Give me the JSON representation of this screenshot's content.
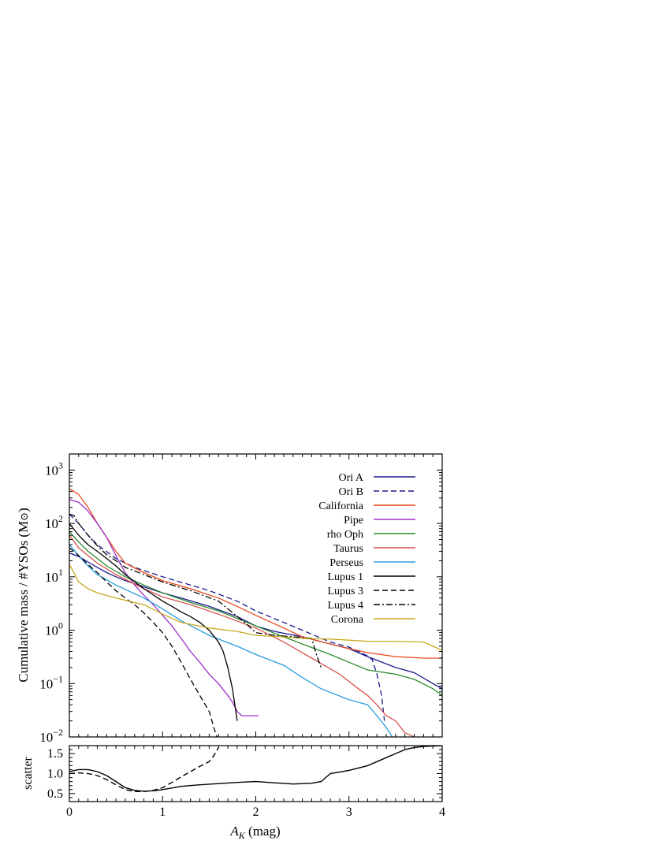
{
  "chart_data": [
    {
      "type": "line",
      "xlabel": "",
      "ylabel": "Cumulative mass / #YSOs (M",
      "ylabel_symbol": "⊙",
      "ylabel_close": ")",
      "xlim": [
        0,
        4
      ],
      "ylim": [
        0.01,
        2000
      ],
      "yscale": "log",
      "grid": false,
      "legend_position": "top-right",
      "y_ticks": [
        {
          "value": 1000,
          "label": "10",
          "exp": "3"
        },
        {
          "value": 100,
          "label": "10",
          "exp": "2"
        },
        {
          "value": 10,
          "label": "10",
          "exp": "1"
        },
        {
          "value": 1,
          "label": "10",
          "exp": "0"
        },
        {
          "value": 0.1,
          "label": "10",
          "exp": "−1"
        },
        {
          "value": 0.01,
          "label": "10",
          "exp": "−2"
        }
      ],
      "series": [
        {
          "name": "Ori A",
          "color": "#1a1a8c",
          "dash": "solid",
          "x": [
            0,
            0.1,
            0.2,
            0.3,
            0.4,
            0.5,
            0.6,
            0.8,
            1.0,
            1.2,
            1.5,
            1.8,
            2.0,
            2.2,
            2.5,
            2.8,
            3.0,
            3.2,
            3.5,
            3.7,
            3.9,
            4.0
          ],
          "y": [
            28,
            24,
            19,
            15,
            12,
            10,
            8.5,
            6.5,
            5,
            4,
            2.8,
            1.8,
            1.2,
            0.95,
            0.75,
            0.55,
            0.45,
            0.32,
            0.2,
            0.16,
            0.1,
            0.08
          ]
        },
        {
          "name": "Ori B",
          "color": "#1a1a8c",
          "dash": "dashed",
          "x": [
            0,
            0.1,
            0.2,
            0.3,
            0.5,
            0.7,
            1.0,
            1.3,
            1.5,
            1.8,
            2.0,
            2.3,
            2.5,
            2.8,
            3.0,
            3.1,
            3.2,
            3.25,
            3.3,
            3.35,
            3.38
          ],
          "y": [
            150,
            100,
            60,
            40,
            22,
            15,
            10,
            7,
            5.5,
            3.5,
            2.3,
            1.4,
            1.0,
            0.6,
            0.48,
            0.4,
            0.33,
            0.28,
            0.15,
            0.06,
            0.02
          ]
        },
        {
          "name": "California",
          "color": "#e8491d",
          "dash": "solid",
          "x": [
            0,
            0.1,
            0.2,
            0.3,
            0.4,
            0.5,
            0.6,
            0.8,
            1.0,
            1.3,
            1.6,
            1.8,
            2.0,
            2.3,
            2.5,
            2.8,
            3.0,
            3.2,
            3.5,
            3.8,
            4.0
          ],
          "y": [
            450,
            350,
            200,
            100,
            55,
            30,
            18,
            12,
            8.5,
            6,
            4,
            2.8,
            1.9,
            1.1,
            0.75,
            0.55,
            0.45,
            0.38,
            0.32,
            0.3,
            0.3
          ]
        },
        {
          "name": "Pipe",
          "color": "#9b30c8",
          "dash": "solid",
          "x": [
            0,
            0.1,
            0.2,
            0.3,
            0.4,
            0.5,
            0.6,
            0.7,
            0.8,
            0.9,
            1.0,
            1.1,
            1.2,
            1.3,
            1.4,
            1.5,
            1.6,
            1.7,
            1.75,
            1.8,
            1.85,
            2.03
          ],
          "y": [
            280,
            250,
            170,
            100,
            55,
            25,
            12,
            7,
            4.5,
            3,
            1.9,
            1.2,
            0.7,
            0.4,
            0.25,
            0.15,
            0.1,
            0.06,
            0.045,
            0.03,
            0.025,
            0.025
          ]
        },
        {
          "name": "rho Oph",
          "color": "#2a8c2a",
          "dash": "solid",
          "x": [
            0,
            0.1,
            0.2,
            0.3,
            0.4,
            0.6,
            0.8,
            1.0,
            1.3,
            1.6,
            2.0,
            2.3,
            2.5,
            2.8,
            3.0,
            3.2,
            3.5,
            3.7,
            3.9,
            4.0
          ],
          "y": [
            70,
            45,
            30,
            22,
            16,
            10,
            7,
            5,
            3.3,
            2.3,
            1.2,
            0.75,
            0.55,
            0.35,
            0.25,
            0.18,
            0.15,
            0.12,
            0.08,
            0.06
          ]
        },
        {
          "name": "Taurus",
          "color": "#d9534f",
          "dash": "solid",
          "x": [
            0,
            0.1,
            0.2,
            0.3,
            0.5,
            0.8,
            1.0,
            1.3,
            1.6,
            2.0,
            2.3,
            2.6,
            2.9,
            3.1,
            3.2,
            3.3,
            3.4,
            3.5,
            3.6,
            3.7
          ],
          "y": [
            60,
            35,
            25,
            18,
            11,
            6,
            4.2,
            3,
            2,
            1.1,
            0.6,
            0.3,
            0.15,
            0.08,
            0.06,
            0.04,
            0.025,
            0.02,
            0.012,
            0.01
          ]
        },
        {
          "name": "Perseus",
          "color": "#2a9de0",
          "dash": "solid",
          "x": [
            0,
            0.1,
            0.2,
            0.3,
            0.5,
            0.8,
            1.0,
            1.2,
            1.5,
            1.8,
            2.0,
            2.3,
            2.5,
            2.7,
            3.0,
            3.2,
            3.3,
            3.4,
            3.5
          ],
          "y": [
            40,
            25,
            16,
            11,
            7,
            4,
            2.5,
            1.5,
            0.8,
            0.5,
            0.35,
            0.22,
            0.13,
            0.08,
            0.05,
            0.04,
            0.025,
            0.015,
            0.008
          ]
        },
        {
          "name": "Lupus 1",
          "color": "#000000",
          "dash": "solid",
          "x": [
            0,
            0.1,
            0.2,
            0.3,
            0.4,
            0.5,
            0.6,
            0.8,
            1.0,
            1.1,
            1.2,
            1.3,
            1.4,
            1.5,
            1.6,
            1.65,
            1.7,
            1.75,
            1.8
          ],
          "y": [
            100,
            60,
            40,
            30,
            22,
            16,
            11,
            6,
            3.5,
            2.8,
            2.2,
            1.8,
            1.4,
            1.0,
            0.6,
            0.4,
            0.2,
            0.08,
            0.02
          ]
        },
        {
          "name": "Lupus 3",
          "color": "#000000",
          "dash": "dashed",
          "x": [
            0,
            0.1,
            0.2,
            0.3,
            0.4,
            0.5,
            0.6,
            0.7,
            0.8,
            0.9,
            1.0,
            1.1,
            1.2,
            1.3,
            1.4,
            1.5,
            1.55,
            1.6
          ],
          "y": [
            35,
            25,
            17,
            12,
            8,
            5.5,
            4,
            3,
            2.1,
            1.4,
            0.9,
            0.5,
            0.25,
            0.12,
            0.06,
            0.03,
            0.015,
            0.008
          ]
        },
        {
          "name": "Lupus 4",
          "color": "#000000",
          "dash": "dashdot",
          "x": [
            0,
            0.05,
            0.1,
            0.2,
            0.3,
            0.4,
            0.5,
            0.6,
            0.8,
            1.0,
            1.3,
            1.6,
            1.9,
            2.0,
            2.2,
            2.4,
            2.6,
            2.65,
            2.7
          ],
          "y": [
            150,
            140,
            100,
            60,
            38,
            26,
            20,
            15,
            11,
            8,
            5.5,
            3.5,
            1.3,
            0.9,
            0.8,
            0.75,
            0.7,
            0.35,
            0.2
          ]
        },
        {
          "name": "Corona",
          "color": "#c8a81e",
          "dash": "solid",
          "x": [
            0,
            0.05,
            0.1,
            0.2,
            0.3,
            0.5,
            0.8,
            1.0,
            1.2,
            1.5,
            1.8,
            2.0,
            2.3,
            2.5,
            2.8,
            3.0,
            3.2,
            3.5,
            3.8,
            3.9,
            4.0
          ],
          "y": [
            17,
            12,
            8,
            6,
            5,
            4,
            3,
            2,
            1.4,
            1.1,
            0.95,
            0.8,
            0.75,
            0.7,
            0.68,
            0.65,
            0.62,
            0.62,
            0.6,
            0.5,
            0.42
          ]
        }
      ]
    },
    {
      "type": "line",
      "xlabel": "A",
      "xlabel_sub": "K",
      "xlabel_unit": " (mag)",
      "ylabel": "scatter",
      "xlim": [
        0,
        4
      ],
      "ylim": [
        0.3,
        1.7
      ],
      "grid": false,
      "x_ticks": [
        0,
        1,
        2,
        3,
        4
      ],
      "y_ticks": [
        0.5,
        1.0,
        1.5
      ],
      "y_tick_labels": [
        "0.5",
        "1.0",
        "1.5"
      ],
      "series": [
        {
          "color": "#000000",
          "dash": "solid",
          "x": [
            0,
            0.1,
            0.2,
            0.3,
            0.4,
            0.5,
            0.6,
            0.7,
            0.8,
            0.9,
            1.0,
            1.2,
            1.4,
            1.6,
            1.8,
            2.0,
            2.2,
            2.4,
            2.6,
            2.7,
            2.8,
            3.0,
            3.2,
            3.4,
            3.5,
            3.6,
            3.7,
            3.8,
            4.0
          ],
          "y": [
            1.05,
            1.1,
            1.1,
            1.05,
            0.95,
            0.8,
            0.65,
            0.58,
            0.56,
            0.57,
            0.6,
            0.68,
            0.72,
            0.75,
            0.78,
            0.8,
            0.77,
            0.74,
            0.76,
            0.8,
            1.0,
            1.08,
            1.2,
            1.4,
            1.5,
            1.6,
            1.65,
            1.68,
            1.7
          ]
        },
        {
          "color": "#000000",
          "dash": "dashed",
          "x": [
            0,
            0.1,
            0.2,
            0.3,
            0.4,
            0.5,
            0.6,
            0.7,
            0.8,
            0.9,
            1.0,
            1.1,
            1.2,
            1.3,
            1.4,
            1.5,
            1.55,
            1.6
          ],
          "y": [
            1.0,
            1.02,
            1.0,
            0.95,
            0.85,
            0.72,
            0.6,
            0.55,
            0.55,
            0.58,
            0.65,
            0.78,
            0.92,
            1.05,
            1.18,
            1.3,
            1.45,
            1.65
          ]
        }
      ]
    }
  ]
}
